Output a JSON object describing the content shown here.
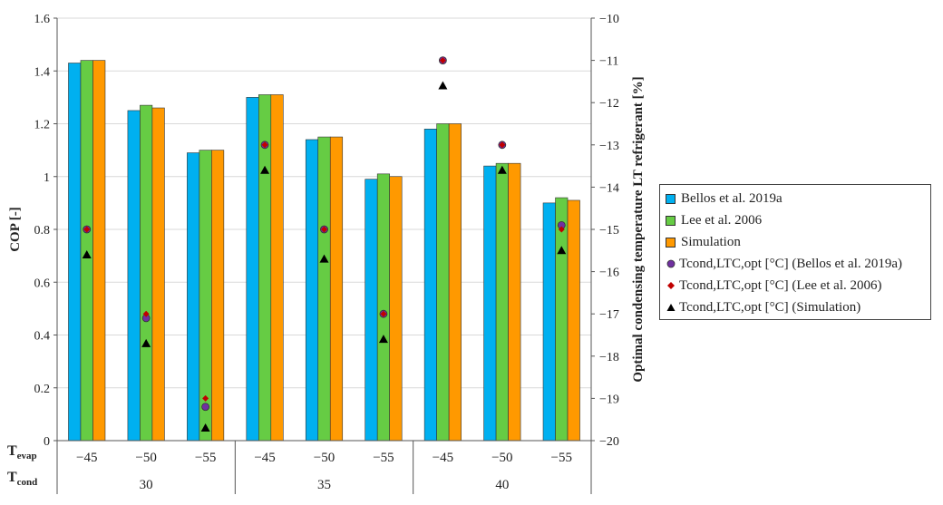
{
  "chart_data": {
    "type": "bar",
    "ylabel": "COP [-]",
    "y2label": "Optimal condensing temperature LT refrigerant [%]",
    "ylim": [
      0,
      1.6
    ],
    "y2lim": [
      -20,
      -10
    ],
    "yticks": [
      "0",
      "0.2",
      "0.4",
      "0.6",
      "0.8",
      "1",
      "1.2",
      "1.4",
      "1.6"
    ],
    "y2ticks": [
      "−10",
      "−11",
      "−12",
      "−13",
      "−14",
      "−15",
      "−16",
      "−17",
      "−18",
      "−19",
      "−20"
    ],
    "row_labels": {
      "evap_main": "T",
      "evap_sub": "evap",
      "cond_main": "T",
      "cond_sub": "cond"
    },
    "categories": [
      "−45",
      "−50",
      "−55",
      "−45",
      "−50",
      "−55",
      "−45",
      "−50",
      "−55"
    ],
    "groups": [
      "30",
      "35",
      "40"
    ],
    "series": [
      {
        "name": "Bellos et al. 2019a",
        "color": "#00B0F0",
        "values": [
          1.43,
          1.25,
          1.09,
          1.3,
          1.14,
          0.99,
          1.18,
          1.04,
          0.9
        ]
      },
      {
        "name": "Lee et al. 2006",
        "color": "#66CC44",
        "values": [
          1.44,
          1.27,
          1.1,
          1.31,
          1.15,
          1.01,
          1.2,
          1.05,
          0.92
        ]
      },
      {
        "name": "Simulation",
        "color": "#FF9900",
        "values": [
          1.44,
          1.26,
          1.1,
          1.31,
          1.15,
          1.0,
          1.2,
          1.05,
          0.91
        ]
      }
    ],
    "markers": [
      {
        "name": "Tcond,LTC,opt [°C] (Bellos et al. 2019a)",
        "shape": "circle",
        "color": "#7030A0",
        "values": [
          -15.0,
          -17.1,
          -19.2,
          -13.0,
          -15.0,
          -17.0,
          -11.0,
          -13.0,
          -14.9
        ]
      },
      {
        "name": "Tcond,LTC,opt [°C] (Lee et al. 2006)",
        "shape": "diamond",
        "color": "#C00000",
        "values": [
          -15.0,
          -17.0,
          -19.0,
          -13.0,
          -15.0,
          -17.0,
          -11.0,
          -13.0,
          -15.0
        ]
      },
      {
        "name": "Tcond,LTC,opt [°C] (Simulation)",
        "shape": "triangle",
        "color": "#000000",
        "values": [
          -15.6,
          -17.7,
          -19.7,
          -13.6,
          -15.7,
          -17.6,
          -11.6,
          -13.6,
          -15.5
        ]
      }
    ],
    "legend_position": "right"
  }
}
